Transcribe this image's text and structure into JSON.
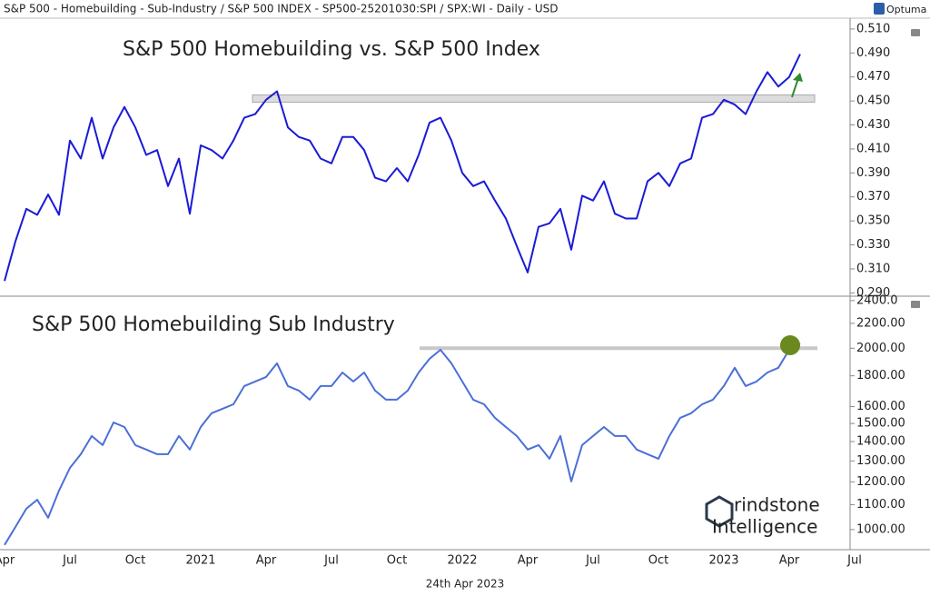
{
  "header": "S&P 500 - Homebuilding - Sub-Industry / S&P 500 INDEX - SP500-25201030:SPI / SPX:WI - Daily - USD",
  "brand": "Optuma",
  "date_label": "24th Apr 2023",
  "logo": [
    "rindstone",
    "Intelligence"
  ],
  "chart_data": [
    {
      "type": "line",
      "title": "S&P 500 Homebuilding vs. S&P 500 Index",
      "color": "#1a1ad8",
      "values": [
        0.3,
        0.333,
        0.36,
        0.355,
        0.372,
        0.355,
        0.417,
        0.402,
        0.436,
        0.402,
        0.428,
        0.445,
        0.428,
        0.405,
        0.409,
        0.379,
        0.402,
        0.356,
        0.413,
        0.409,
        0.402,
        0.417,
        0.436,
        0.439,
        0.451,
        0.458,
        0.428,
        0.42,
        0.417,
        0.402,
        0.398,
        0.42,
        0.42,
        0.409,
        0.386,
        0.383,
        0.394,
        0.383,
        0.405,
        0.432,
        0.436,
        0.417,
        0.39,
        0.379,
        0.383,
        0.367,
        0.352,
        0.329,
        0.307,
        0.345,
        0.348,
        0.36,
        0.326,
        0.371,
        0.367,
        0.383,
        0.356,
        0.352,
        0.352,
        0.383,
        0.39,
        0.379,
        0.398,
        0.402,
        0.436,
        0.439,
        0.451,
        0.447,
        0.439,
        0.458,
        0.474,
        0.462,
        0.47,
        0.489,
        null,
        null,
        null,
        null,
        null
      ],
      "ylim": [
        0.288,
        0.519
      ],
      "yticks": [
        {
          "value": 0.29,
          "label": "0.290"
        },
        {
          "value": 0.31,
          "label": "0.310"
        },
        {
          "value": 0.33,
          "label": "0.330"
        },
        {
          "value": 0.35,
          "label": "0.350"
        },
        {
          "value": 0.37,
          "label": "0.370"
        },
        {
          "value": 0.39,
          "label": "0.390"
        },
        {
          "value": 0.41,
          "label": "0.410"
        },
        {
          "value": 0.43,
          "label": "0.430"
        },
        {
          "value": 0.45,
          "label": "0.450"
        },
        {
          "value": 0.47,
          "label": "0.470"
        },
        {
          "value": 0.49,
          "label": "0.490"
        },
        {
          "value": 0.51,
          "label": "0.510"
        }
      ],
      "hline": 0.452,
      "log_scale": false
    },
    {
      "type": "line",
      "title": "S&P 500 Homebuilding Sub Industry",
      "color": "#4a6fd8",
      "categories": [
        "Apr",
        null,
        null,
        null,
        null,
        null,
        "Jul",
        null,
        null,
        null,
        null,
        null,
        "Oct",
        null,
        null,
        null,
        null,
        null,
        "2021",
        null,
        null,
        null,
        null,
        null,
        "Apr",
        null,
        null,
        null,
        null,
        null,
        "Jul",
        null,
        null,
        null,
        null,
        null,
        "Oct",
        null,
        null,
        null,
        null,
        null,
        "2022",
        null,
        null,
        null,
        null,
        null,
        "Apr",
        null,
        null,
        null,
        null,
        null,
        "Jul",
        null,
        null,
        null,
        null,
        null,
        "Oct",
        null,
        null,
        null,
        null,
        null,
        "2023",
        null,
        null,
        null,
        null,
        null,
        "Apr",
        null,
        null,
        null,
        null,
        null,
        "Jul"
      ],
      "values": [
        943,
        1010,
        1083,
        1121,
        1046,
        1161,
        1266,
        1334,
        1430,
        1381,
        1506,
        1480,
        1381,
        1358,
        1334,
        1334,
        1430,
        1358,
        1480,
        1560,
        1587,
        1614,
        1731,
        1761,
        1792,
        1888,
        1731,
        1701,
        1643,
        1731,
        1731,
        1823,
        1761,
        1823,
        1701,
        1643,
        1643,
        1701,
        1823,
        1921,
        1988,
        1888,
        1761,
        1643,
        1614,
        1533,
        1480,
        1430,
        1358,
        1381,
        1311,
        1430,
        1202,
        1381,
        1430,
        1480,
        1430,
        1430,
        1358,
        1334,
        1311,
        1430,
        1533,
        1560,
        1614,
        1643,
        1731,
        1856,
        1731,
        1761,
        1823,
        1856,
        1988,
        2037,
        null,
        null,
        null,
        null,
        null
      ],
      "ylim": [
        926,
        2432
      ],
      "yticks": [
        {
          "value": 1000,
          "label": "1000.00"
        },
        {
          "value": 1100,
          "label": "1100.00"
        },
        {
          "value": 1200,
          "label": "1200.00"
        },
        {
          "value": 1300,
          "label": "1300.00"
        },
        {
          "value": 1400,
          "label": "1400.00"
        },
        {
          "value": 1500,
          "label": "1500.00"
        },
        {
          "value": 1600,
          "label": "1600.00"
        },
        {
          "value": 1800,
          "label": "1800.00"
        },
        {
          "value": 2000,
          "label": "2000.00"
        },
        {
          "value": 2200,
          "label": "2200.00"
        },
        {
          "value": 2400,
          "label": "2400.0"
        }
      ],
      "hline": 2000,
      "log_scale": true
    }
  ]
}
